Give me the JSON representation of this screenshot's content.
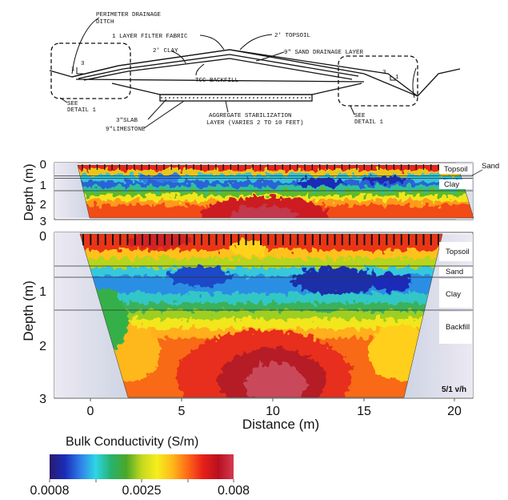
{
  "schematic": {
    "labels": {
      "perimeter_drainage": "PERIMETER DRAINAGE",
      "ditch": "DITCH",
      "filter_fabric": "1 LAYER FILTER FABRIC",
      "topsoil": "2' TOPSOIL",
      "clay": "2' CLAY",
      "sand_drainage": "9\" SAND DRAINAGE LAYER",
      "slope_left_3": "3",
      "slope_left_1": "1",
      "slope_right_3": "3",
      "slope_right_1": "1",
      "tcc_backfill": "TCC BACKFILL",
      "see_left": "SEE",
      "detail_left": "DETAIL 1",
      "see_right": "SEE",
      "detail_right": "DETAIL 1",
      "slab": "3\"SLAB",
      "limestone": "9\"LIMESTONE",
      "aggregate_1": "AGGREGATE STABILIZATION",
      "aggregate_2": "LAYER (VARIES 2 TO 10 FEET)"
    }
  },
  "top_section": {
    "ylabel": "Depth (m)",
    "yticks": [
      "0",
      "1",
      "2",
      "3"
    ],
    "layers": [
      "Topsoil",
      "Clay"
    ],
    "sand_callout": "Sand"
  },
  "bottom_section": {
    "ylabel": "Depth (m)",
    "yticks": [
      "0",
      "1",
      "2",
      "3"
    ],
    "layers": [
      "Topsoil",
      "Sand",
      "Clay",
      "Backfill"
    ],
    "exaggeration": "5/1 v/h",
    "xlabel": "Distance (m)",
    "xticks": [
      "0",
      "5",
      "10",
      "15",
      "20"
    ]
  },
  "colorbar": {
    "title": "Bulk Conductivity (S/m)",
    "tick_labels": [
      "0.0008",
      "0.0025",
      "0.008"
    ],
    "colors": [
      "#2a1a6e",
      "#1a2cb8",
      "#2f7ee8",
      "#2fd6e6",
      "#26b26e",
      "#4aa82a",
      "#c4d81e",
      "#f6ee1c",
      "#ffb81a",
      "#ff6a18",
      "#e82018",
      "#b81020",
      "#d43a52"
    ]
  },
  "chart_data": {
    "type": "heatmap",
    "title": "",
    "colorbar_label": "Bulk Conductivity (S/m)",
    "colorbar_ticks": [
      0.0008,
      0.0025,
      0.008
    ],
    "xlabel": "Distance (m)",
    "ylabel": "Depth (m)",
    "xlim": [
      -2.2,
      21
    ],
    "ylim": [
      3,
      0
    ],
    "x_ticks": [
      0,
      5,
      10,
      15,
      20
    ],
    "y_ticks": [
      0,
      1,
      2,
      3
    ],
    "panels": [
      {
        "layer_labels": [
          "Topsoil",
          "Sand",
          "Clay"
        ],
        "layer_boundaries_m": [
          0.5,
          0.6,
          1.3
        ]
      },
      {
        "layer_labels": [
          "Topsoil",
          "Sand",
          "Clay",
          "Backfill"
        ],
        "layer_boundaries_m": [
          0.45,
          0.6,
          1.3
        ],
        "vertical_exaggeration": "5/1 v/h"
      }
    ]
  }
}
